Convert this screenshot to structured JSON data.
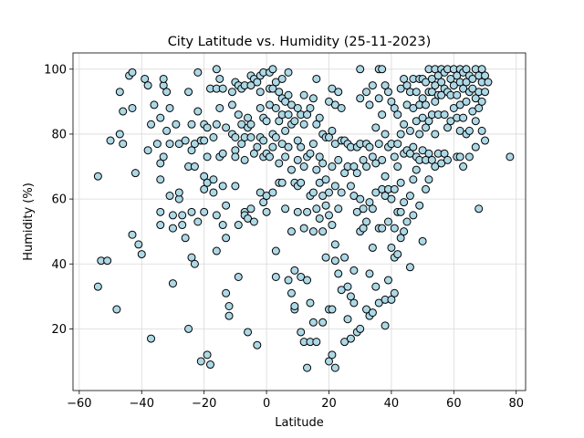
{
  "chart_data": {
    "type": "scatter",
    "title": "City Latitude vs. Humidity (25-11-2023)",
    "xlabel": "Latitude",
    "ylabel": "Humidity (%)",
    "xlim": [
      -62,
      83
    ],
    "ylim": [
      1,
      105
    ],
    "xticks": [
      -60,
      -40,
      -20,
      0,
      20,
      40,
      60,
      80
    ],
    "yticks": [
      20,
      40,
      60,
      80,
      100
    ],
    "grid": true,
    "marker_fill": "#add8e6",
    "marker_edge": "#000000",
    "points": [
      [
        -54,
        67
      ],
      [
        -54,
        33
      ],
      [
        -53,
        41
      ],
      [
        -51,
        41
      ],
      [
        -50,
        78
      ],
      [
        -48,
        26
      ],
      [
        -47,
        80
      ],
      [
        -47,
        93
      ],
      [
        -46,
        77
      ],
      [
        -46,
        87
      ],
      [
        -44,
        98
      ],
      [
        -43,
        99
      ],
      [
        -43,
        88
      ],
      [
        -43,
        49
      ],
      [
        -42,
        68
      ],
      [
        -41,
        46
      ],
      [
        -40,
        43
      ],
      [
        -39,
        97
      ],
      [
        -38,
        95
      ],
      [
        -38,
        75
      ],
      [
        -37,
        83
      ],
      [
        -37,
        17
      ],
      [
        -36,
        89
      ],
      [
        -35,
        77
      ],
      [
        -34,
        71
      ],
      [
        -34,
        85
      ],
      [
        -34,
        66
      ],
      [
        -34,
        56
      ],
      [
        -34,
        52
      ],
      [
        -33,
        95
      ],
      [
        -33,
        97
      ],
      [
        -33,
        73
      ],
      [
        -32,
        93
      ],
      [
        -32,
        81
      ],
      [
        -31,
        88
      ],
      [
        -31,
        77
      ],
      [
        -31,
        61
      ],
      [
        -30,
        55
      ],
      [
        -30,
        34
      ],
      [
        -30,
        51
      ],
      [
        -29,
        83
      ],
      [
        -28,
        77
      ],
      [
        -28,
        60
      ],
      [
        -28,
        62
      ],
      [
        -27,
        55
      ],
      [
        -27,
        52
      ],
      [
        -26,
        78
      ],
      [
        -26,
        48
      ],
      [
        -25,
        93
      ],
      [
        -25,
        20
      ],
      [
        -25,
        70
      ],
      [
        -24,
        83
      ],
      [
        -24,
        75
      ],
      [
        -24,
        56
      ],
      [
        -24,
        42
      ],
      [
        -23,
        77
      ],
      [
        -23,
        70
      ],
      [
        -23,
        40
      ],
      [
        -22,
        99
      ],
      [
        -22,
        87
      ],
      [
        -22,
        53
      ],
      [
        -21,
        78
      ],
      [
        -21,
        10
      ],
      [
        -20,
        78
      ],
      [
        -20,
        83
      ],
      [
        -20,
        67
      ],
      [
        -20,
        63
      ],
      [
        -20,
        56
      ],
      [
        -19,
        82
      ],
      [
        -19,
        73
      ],
      [
        -19,
        65
      ],
      [
        -19,
        12
      ],
      [
        -18,
        94
      ],
      [
        -18,
        9
      ],
      [
        -17,
        79
      ],
      [
        -17,
        66
      ],
      [
        -17,
        62
      ],
      [
        -16,
        100
      ],
      [
        -16,
        94
      ],
      [
        -16,
        83
      ],
      [
        -16,
        55
      ],
      [
        -16,
        44
      ],
      [
        -15,
        97
      ],
      [
        -15,
        88
      ],
      [
        -15,
        73
      ],
      [
        -14,
        94
      ],
      [
        -14,
        74
      ],
      [
        -14,
        64
      ],
      [
        -14,
        52
      ],
      [
        -13,
        82
      ],
      [
        -13,
        58
      ],
      [
        -13,
        48
      ],
      [
        -13,
        31
      ],
      [
        -12,
        27
      ],
      [
        -12,
        24
      ],
      [
        -11,
        93
      ],
      [
        -11,
        89
      ],
      [
        -11,
        80
      ],
      [
        -10,
        79
      ],
      [
        -10,
        96
      ],
      [
        -10,
        75
      ],
      [
        -10,
        73
      ],
      [
        -10,
        64
      ],
      [
        -9,
        95
      ],
      [
        -9,
        86
      ],
      [
        -9,
        52
      ],
      [
        -9,
        36
      ],
      [
        -8,
        94
      ],
      [
        -8,
        83
      ],
      [
        -8,
        77
      ],
      [
        -7,
        95
      ],
      [
        -7,
        79
      ],
      [
        -7,
        72
      ],
      [
        -7,
        56
      ],
      [
        -7,
        55
      ],
      [
        -6,
        85
      ],
      [
        -6,
        82
      ],
      [
        -6,
        54
      ],
      [
        -6,
        19
      ],
      [
        -5,
        98
      ],
      [
        -5,
        95
      ],
      [
        -5,
        83
      ],
      [
        -5,
        79
      ],
      [
        -5,
        57
      ],
      [
        -4,
        97
      ],
      [
        -4,
        74
      ],
      [
        -4,
        53
      ],
      [
        -3,
        96
      ],
      [
        -3,
        76
      ],
      [
        -3,
        15
      ],
      [
        -2,
        98
      ],
      [
        -2,
        93
      ],
      [
        -2,
        88
      ],
      [
        -2,
        79
      ],
      [
        -2,
        62
      ],
      [
        -1,
        99
      ],
      [
        -1,
        85
      ],
      [
        -1,
        78
      ],
      [
        -1,
        73
      ],
      [
        -1,
        59
      ],
      [
        0,
        84
      ],
      [
        0,
        74
      ],
      [
        0,
        56
      ],
      [
        0,
        61
      ],
      [
        1,
        99
      ],
      [
        1,
        94
      ],
      [
        1,
        89
      ],
      [
        1,
        73
      ],
      [
        2,
        100
      ],
      [
        2,
        94
      ],
      [
        2,
        80
      ],
      [
        2,
        76
      ],
      [
        2,
        62
      ],
      [
        3,
        96
      ],
      [
        3,
        88
      ],
      [
        3,
        79
      ],
      [
        3,
        44
      ],
      [
        3,
        36
      ],
      [
        4,
        93
      ],
      [
        4,
        84
      ],
      [
        4,
        71
      ],
      [
        4,
        65
      ],
      [
        5,
        97
      ],
      [
        5,
        91
      ],
      [
        5,
        86
      ],
      [
        5,
        77
      ],
      [
        5,
        65
      ],
      [
        6,
        90
      ],
      [
        6,
        81
      ],
      [
        6,
        73
      ],
      [
        6,
        57
      ],
      [
        7,
        99
      ],
      [
        7,
        92
      ],
      [
        7,
        86
      ],
      [
        7,
        76
      ],
      [
        7,
        35
      ],
      [
        8,
        89
      ],
      [
        8,
        83
      ],
      [
        8,
        69
      ],
      [
        8,
        50
      ],
      [
        8,
        31
      ],
      [
        9,
        84
      ],
      [
        9,
        65
      ],
      [
        9,
        38
      ],
      [
        9,
        26
      ],
      [
        9,
        27
      ],
      [
        10,
        88
      ],
      [
        10,
        78
      ],
      [
        10,
        72
      ],
      [
        10,
        64
      ],
      [
        10,
        56
      ],
      [
        11,
        86
      ],
      [
        11,
        76
      ],
      [
        11,
        65
      ],
      [
        11,
        36
      ],
      [
        11,
        19
      ],
      [
        12,
        92
      ],
      [
        12,
        83
      ],
      [
        12,
        70
      ],
      [
        12,
        51
      ],
      [
        12,
        16
      ],
      [
        13,
        86
      ],
      [
        13,
        73
      ],
      [
        13,
        56
      ],
      [
        13,
        35
      ],
      [
        13,
        8
      ],
      [
        14,
        88
      ],
      [
        14,
        74
      ],
      [
        14,
        61
      ],
      [
        14,
        28
      ],
      [
        14,
        16
      ],
      [
        15,
        91
      ],
      [
        15,
        77
      ],
      [
        15,
        62
      ],
      [
        15,
        50
      ],
      [
        15,
        22
      ],
      [
        16,
        97
      ],
      [
        16,
        83
      ],
      [
        16,
        69
      ],
      [
        16,
        57
      ],
      [
        16,
        16
      ],
      [
        17,
        85
      ],
      [
        17,
        73
      ],
      [
        17,
        65
      ],
      [
        17,
        54
      ],
      [
        18,
        80
      ],
      [
        18,
        71
      ],
      [
        18,
        61
      ],
      [
        18,
        50
      ],
      [
        18,
        22
      ],
      [
        19,
        79
      ],
      [
        19,
        66
      ],
      [
        19,
        58
      ],
      [
        19,
        42
      ],
      [
        20,
        90
      ],
      [
        20,
        79
      ],
      [
        20,
        62
      ],
      [
        20,
        55
      ],
      [
        20,
        26
      ],
      [
        20,
        10
      ],
      [
        21,
        94
      ],
      [
        21,
        81
      ],
      [
        21,
        70
      ],
      [
        21,
        52
      ],
      [
        21,
        26
      ],
      [
        21,
        12
      ],
      [
        22,
        89
      ],
      [
        22,
        77
      ],
      [
        22,
        64
      ],
      [
        22,
        46
      ],
      [
        22,
        41
      ],
      [
        22,
        8
      ],
      [
        23,
        93
      ],
      [
        23,
        72
      ],
      [
        23,
        57
      ],
      [
        23,
        37
      ],
      [
        24,
        88
      ],
      [
        24,
        78
      ],
      [
        24,
        62
      ],
      [
        24,
        32
      ],
      [
        25,
        78
      ],
      [
        25,
        68
      ],
      [
        25,
        42
      ],
      [
        25,
        16
      ],
      [
        26,
        77
      ],
      [
        26,
        70
      ],
      [
        26,
        33
      ],
      [
        26,
        23
      ],
      [
        27,
        76
      ],
      [
        27,
        64
      ],
      [
        27,
        30
      ],
      [
        27,
        17
      ],
      [
        28,
        70
      ],
      [
        28,
        61
      ],
      [
        28,
        38
      ],
      [
        28,
        28
      ],
      [
        29,
        76
      ],
      [
        29,
        68
      ],
      [
        29,
        56
      ],
      [
        29,
        19
      ],
      [
        30,
        91
      ],
      [
        30,
        100
      ],
      [
        30,
        77
      ],
      [
        30,
        60
      ],
      [
        30,
        50
      ],
      [
        30,
        20
      ],
      [
        31,
        72
      ],
      [
        31,
        57
      ],
      [
        31,
        51
      ],
      [
        32,
        93
      ],
      [
        32,
        77
      ],
      [
        32,
        70
      ],
      [
        32,
        53
      ],
      [
        32,
        26
      ],
      [
        33,
        89
      ],
      [
        33,
        76
      ],
      [
        33,
        59
      ],
      [
        33,
        37
      ],
      [
        33,
        24
      ],
      [
        34,
        95
      ],
      [
        34,
        73
      ],
      [
        34,
        57
      ],
      [
        34,
        45
      ],
      [
        34,
        25
      ],
      [
        35,
        82
      ],
      [
        35,
        71
      ],
      [
        35,
        62
      ],
      [
        35,
        33
      ],
      [
        36,
        100
      ],
      [
        36,
        91
      ],
      [
        36,
        77
      ],
      [
        36,
        51
      ],
      [
        36,
        28
      ],
      [
        37,
        100
      ],
      [
        37,
        86
      ],
      [
        37,
        72
      ],
      [
        37,
        63
      ],
      [
        37,
        51
      ],
      [
        38,
        95
      ],
      [
        38,
        80
      ],
      [
        38,
        67
      ],
      [
        38,
        61
      ],
      [
        38,
        29
      ],
      [
        38,
        21
      ],
      [
        39,
        93
      ],
      [
        39,
        76
      ],
      [
        39,
        63
      ],
      [
        39,
        53
      ],
      [
        39,
        35
      ],
      [
        40,
        90
      ],
      [
        40,
        77
      ],
      [
        40,
        60
      ],
      [
        40,
        45
      ],
      [
        40,
        29
      ],
      [
        41,
        88
      ],
      [
        41,
        73
      ],
      [
        41,
        63
      ],
      [
        41,
        51
      ],
      [
        41,
        42
      ],
      [
        41,
        31
      ],
      [
        42,
        86
      ],
      [
        42,
        77
      ],
      [
        42,
        70
      ],
      [
        42,
        56
      ],
      [
        42,
        43
      ],
      [
        43,
        94
      ],
      [
        43,
        80
      ],
      [
        43,
        65
      ],
      [
        43,
        56
      ],
      [
        43,
        48
      ],
      [
        44,
        97
      ],
      [
        44,
        83
      ],
      [
        44,
        74
      ],
      [
        44,
        59
      ],
      [
        44,
        50
      ],
      [
        45,
        95
      ],
      [
        45,
        89
      ],
      [
        45,
        75
      ],
      [
        45,
        53
      ],
      [
        46,
        93
      ],
      [
        46,
        81
      ],
      [
        46,
        74
      ],
      [
        46,
        61
      ],
      [
        46,
        39
      ],
      [
        47,
        97
      ],
      [
        47,
        88
      ],
      [
        47,
        76
      ],
      [
        47,
        66
      ],
      [
        47,
        55
      ],
      [
        48,
        93
      ],
      [
        48,
        84
      ],
      [
        48,
        73
      ],
      [
        48,
        69
      ],
      [
        49,
        97
      ],
      [
        49,
        89
      ],
      [
        49,
        80
      ],
      [
        49,
        72
      ],
      [
        49,
        58
      ],
      [
        50,
        97
      ],
      [
        50,
        91
      ],
      [
        50,
        85
      ],
      [
        50,
        75
      ],
      [
        50,
        47
      ],
      [
        51,
        96
      ],
      [
        51,
        89
      ],
      [
        51,
        82
      ],
      [
        51,
        72
      ],
      [
        51,
        63
      ],
      [
        52,
        100
      ],
      [
        52,
        93
      ],
      [
        52,
        84
      ],
      [
        52,
        74
      ],
      [
        52,
        66
      ],
      [
        53,
        97
      ],
      [
        53,
        93
      ],
      [
        53,
        86
      ],
      [
        53,
        72
      ],
      [
        54,
        100
      ],
      [
        54,
        95
      ],
      [
        54,
        90
      ],
      [
        54,
        80
      ],
      [
        54,
        70
      ],
      [
        55,
        98
      ],
      [
        55,
        92
      ],
      [
        55,
        86
      ],
      [
        55,
        74
      ],
      [
        56,
        100
      ],
      [
        56,
        96
      ],
      [
        56,
        92
      ],
      [
        56,
        71
      ],
      [
        57,
        99
      ],
      [
        57,
        94
      ],
      [
        57,
        86
      ],
      [
        57,
        74
      ],
      [
        58,
        100
      ],
      [
        58,
        93
      ],
      [
        58,
        82
      ],
      [
        58,
        72
      ],
      [
        59,
        97
      ],
      [
        59,
        92
      ],
      [
        59,
        84
      ],
      [
        60,
        100
      ],
      [
        60,
        95
      ],
      [
        60,
        88
      ],
      [
        61,
        98
      ],
      [
        61,
        92
      ],
      [
        61,
        85
      ],
      [
        61,
        73
      ],
      [
        62,
        100
      ],
      [
        62,
        96
      ],
      [
        62,
        89
      ],
      [
        62,
        81
      ],
      [
        62,
        73
      ],
      [
        63,
        99
      ],
      [
        63,
        94
      ],
      [
        63,
        85
      ],
      [
        63,
        70
      ],
      [
        64,
        100
      ],
      [
        64,
        96
      ],
      [
        64,
        90
      ],
      [
        64,
        80
      ],
      [
        65,
        98
      ],
      [
        65,
        93
      ],
      [
        65,
        81
      ],
      [
        65,
        73
      ],
      [
        66,
        97
      ],
      [
        66,
        94
      ],
      [
        66,
        87
      ],
      [
        67,
        100
      ],
      [
        67,
        91
      ],
      [
        67,
        84
      ],
      [
        67,
        76
      ],
      [
        68,
        98
      ],
      [
        68,
        93
      ],
      [
        68,
        88
      ],
      [
        68,
        57
      ],
      [
        69,
        100
      ],
      [
        69,
        96
      ],
      [
        69,
        90
      ],
      [
        69,
        81
      ],
      [
        70,
        93
      ],
      [
        70,
        98
      ],
      [
        70,
        78
      ],
      [
        71,
        96
      ],
      [
        78,
        73
      ]
    ]
  }
}
